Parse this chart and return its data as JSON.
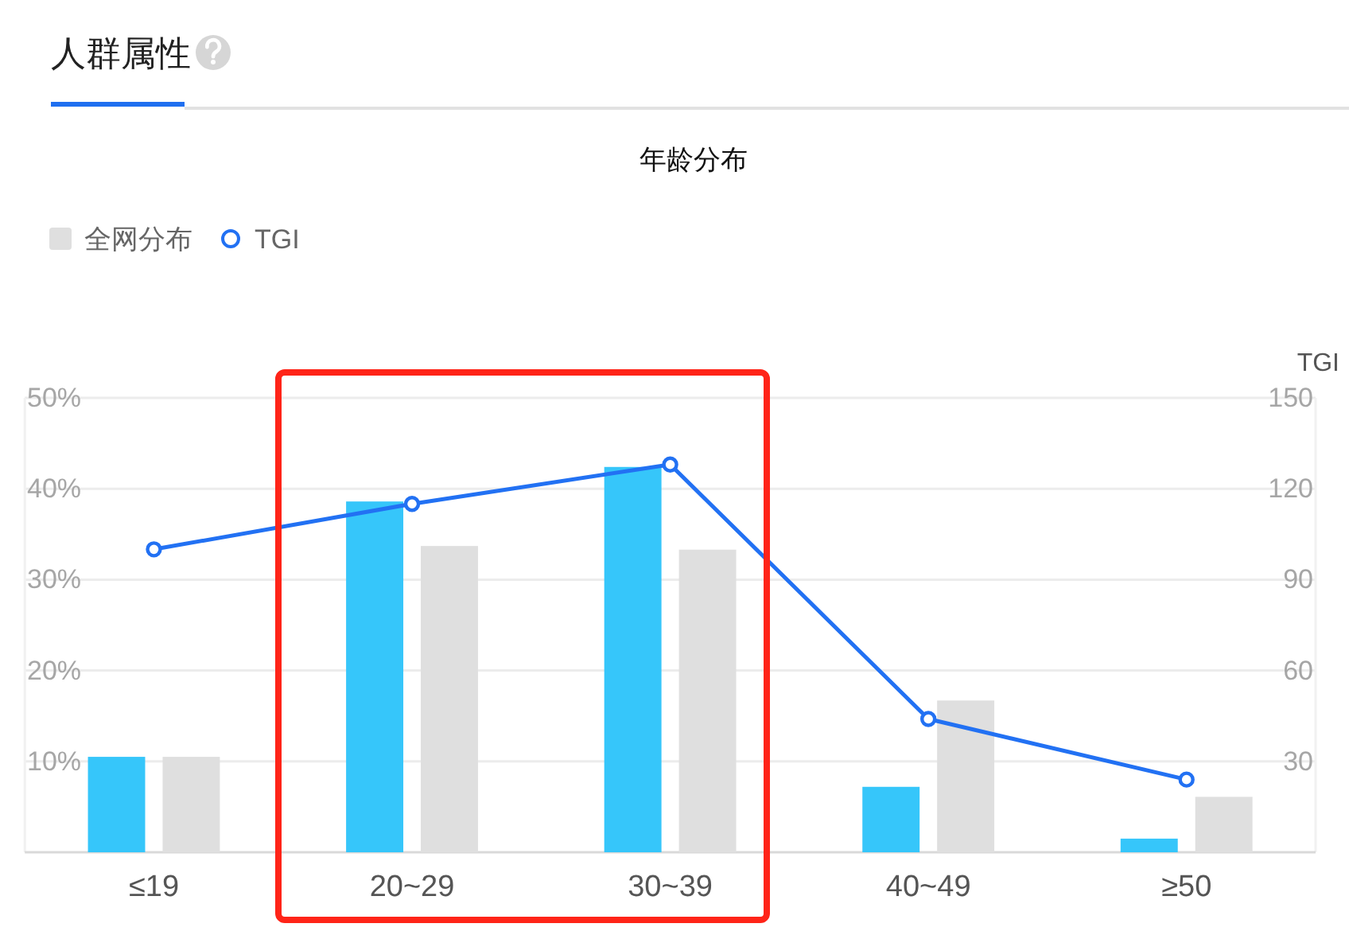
{
  "chart_data": {
    "type": "bar",
    "title": "人群属性",
    "subtitle": "年龄分布",
    "y2label": "TGI",
    "categories": [
      "≤19",
      "20~29",
      "30~39",
      "40~49",
      "≥50"
    ],
    "series": [
      {
        "color": "#36c6fa",
        "values": [
          10.5,
          38.6,
          42.4,
          7.2,
          1.5
        ]
      },
      {
        "name": "全网分布",
        "color": "#dfdfdf",
        "values": [
          10.5,
          33.7,
          33.3,
          16.7,
          6.1
        ]
      },
      {
        "type": "line",
        "name": "TGI",
        "axis": "y2",
        "color": "#2271f3",
        "marker": "circle",
        "line_style": "solid",
        "values": [
          100,
          115,
          128,
          44,
          24
        ]
      }
    ],
    "ylim": [
      0,
      50
    ],
    "yticks": [
      {
        "value": 10,
        "label": "10%"
      },
      {
        "value": 20,
        "label": "20%"
      },
      {
        "value": 30,
        "label": "30%"
      },
      {
        "value": 40,
        "label": "40%"
      },
      {
        "value": 50,
        "label": "50%"
      }
    ],
    "y2lim": [
      0,
      150
    ],
    "y2ticks": [
      30,
      60,
      90,
      120,
      150
    ],
    "grid": "y",
    "legend": "top left"
  }
}
